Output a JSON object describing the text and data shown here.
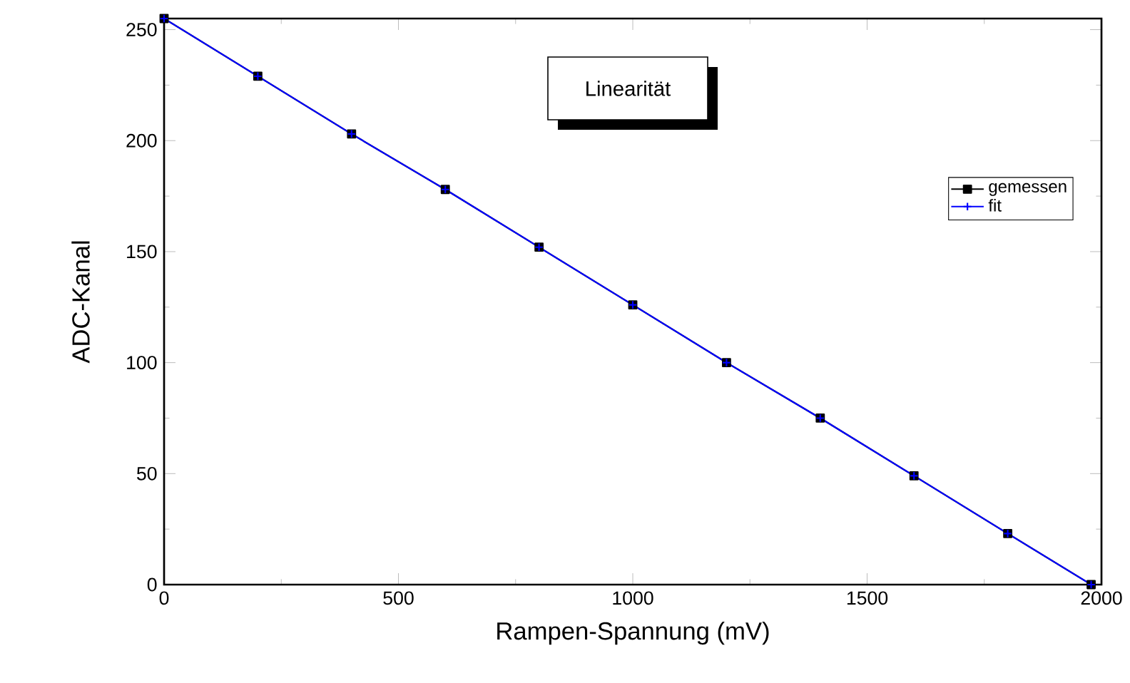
{
  "chart_data": {
    "type": "line",
    "xlabel": "Rampen-Spannung (mV)",
    "ylabel": "ADC-Kanal",
    "annotations": [
      "Linearität"
    ],
    "xlim": [
      0,
      2000
    ],
    "xticks": [
      0,
      500,
      1000,
      1500,
      2000
    ],
    "ylim": [
      0,
      255
    ],
    "yticks": [
      0,
      50,
      100,
      150,
      200,
      250
    ],
    "grid": false,
    "legend": "right",
    "series": [
      {
        "name": "gemessen",
        "color": "#000000",
        "marker": "square",
        "x": [
          0,
          200,
          400,
          600,
          800,
          1000,
          1200,
          1400,
          1600,
          1800,
          1978
        ],
        "values": [
          255,
          229,
          203,
          178,
          152,
          126,
          100,
          75,
          49,
          23,
          0
        ]
      },
      {
        "name": "fit",
        "color": "#0000ff",
        "marker": "cross",
        "x": [
          0,
          200,
          400,
          600,
          800,
          1000,
          1200,
          1400,
          1600,
          1800,
          1978
        ],
        "values": [
          255,
          229,
          203,
          178,
          152,
          126,
          100,
          75,
          49,
          23,
          0
        ]
      }
    ]
  }
}
